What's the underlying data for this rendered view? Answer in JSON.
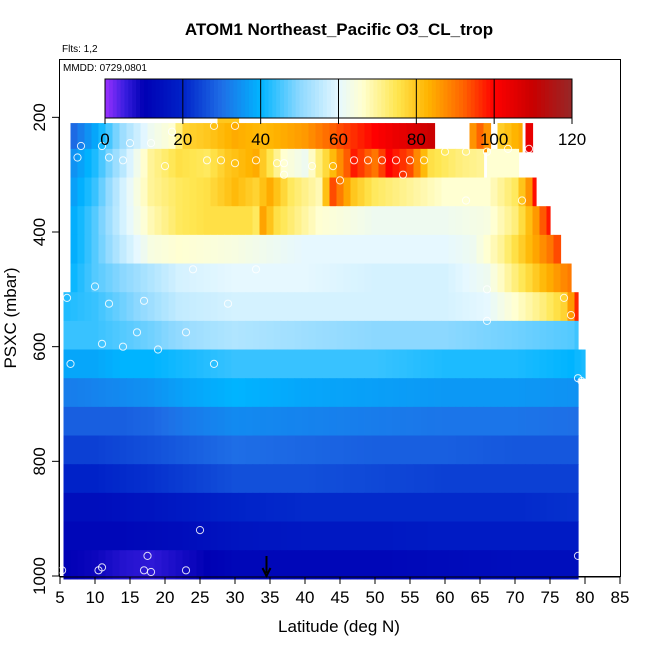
{
  "chart_data": {
    "type": "heatmap",
    "title": "ATOM1 Northeast_Pacific O3_CL_trop",
    "flights_label": "Flts: 1,2",
    "date_label": "MMDD: 0729,0801",
    "xlabel": "Latitude (deg N)",
    "ylabel": "PSXC (mbar)",
    "xlim": [
      5,
      85
    ],
    "ylim": [
      1000,
      100
    ],
    "x_ticks": [
      5,
      10,
      15,
      20,
      25,
      30,
      35,
      40,
      45,
      50,
      55,
      60,
      65,
      70,
      75,
      80,
      85
    ],
    "y_ticks": [
      200,
      400,
      600,
      800,
      1000
    ],
    "colorbar": {
      "min": 0,
      "max": 120,
      "ticks": [
        0,
        20,
        40,
        60,
        80,
        100,
        120
      ],
      "stops": [
        {
          "v": 0,
          "c": "#9b30ff"
        },
        {
          "v": 5,
          "c": "#3a1ee0"
        },
        {
          "v": 10,
          "c": "#0000b4"
        },
        {
          "v": 20,
          "c": "#0022c8"
        },
        {
          "v": 30,
          "c": "#1e6ee6"
        },
        {
          "v": 40,
          "c": "#00b4ff"
        },
        {
          "v": 50,
          "c": "#8cd8ff"
        },
        {
          "v": 60,
          "c": "#e6f8ff"
        },
        {
          "v": 66,
          "c": "#ffffd2"
        },
        {
          "v": 75,
          "c": "#ffe650"
        },
        {
          "v": 83,
          "c": "#ffb400"
        },
        {
          "v": 92,
          "c": "#ff6400"
        },
        {
          "v": 100,
          "c": "#ff0000"
        },
        {
          "v": 110,
          "c": "#c80000"
        },
        {
          "v": 120,
          "c": "#962828"
        }
      ]
    },
    "arrow_latitude": 34.5,
    "rows": [
      {
        "p": 210,
        "x0": 27.5,
        "x1": 30.5,
        "default": 80,
        "knots": [
          [
            27.5,
            80
          ]
        ]
      },
      {
        "p": 235,
        "x0": 6.5,
        "x1": 58.5,
        "default": 62,
        "knots": [
          [
            6.5,
            28
          ],
          [
            10,
            38
          ],
          [
            14,
            52
          ],
          [
            18,
            62
          ],
          [
            21,
            66
          ],
          [
            23,
            78
          ],
          [
            26,
            80
          ],
          [
            30,
            84
          ],
          [
            34,
            82
          ],
          [
            40,
            86
          ],
          [
            45,
            94
          ],
          [
            50,
            100
          ],
          [
            55,
            106
          ],
          [
            58.5,
            110
          ]
        ]
      },
      {
        "p": 235,
        "x0": 63.5,
        "x1": 66.5,
        "default": 88,
        "knots": [
          [
            63.5,
            84
          ],
          [
            65,
            92
          ],
          [
            66.5,
            84
          ]
        ]
      },
      {
        "p": 235,
        "x0": 67.5,
        "x1": 71,
        "default": 82,
        "knots": [
          [
            67.5,
            78
          ],
          [
            71,
            85
          ]
        ]
      },
      {
        "p": 235,
        "x0": 71.5,
        "x1": 72.5,
        "default": 104,
        "knots": [
          [
            71.5,
            104
          ]
        ]
      },
      {
        "p": 280,
        "x0": 6.5,
        "x1": 65.5,
        "default": 70,
        "knots": [
          [
            6.5,
            34
          ],
          [
            10,
            42
          ],
          [
            14,
            55
          ],
          [
            18,
            70
          ],
          [
            22,
            76
          ],
          [
            26,
            74
          ],
          [
            29,
            80
          ],
          [
            33,
            84
          ],
          [
            37,
            66
          ],
          [
            40,
            62
          ],
          [
            44,
            82
          ],
          [
            47,
            98
          ],
          [
            50,
            90
          ],
          [
            52,
            100
          ],
          [
            55,
            94
          ],
          [
            58,
            76
          ],
          [
            62,
            72
          ],
          [
            65.5,
            70
          ]
        ]
      },
      {
        "p": 280,
        "x0": 66,
        "x1": 70.5,
        "default": 66,
        "knots": [
          [
            66,
            66
          ]
        ]
      },
      {
        "p": 330,
        "x0": 6.5,
        "x1": 73,
        "default": 66,
        "knots": [
          [
            6.5,
            36
          ],
          [
            10,
            44
          ],
          [
            14,
            58
          ],
          [
            18,
            70
          ],
          [
            22,
            74
          ],
          [
            26,
            76
          ],
          [
            30,
            82
          ],
          [
            33,
            78
          ],
          [
            35,
            84
          ],
          [
            38,
            74
          ],
          [
            42,
            68
          ],
          [
            44,
            94
          ],
          [
            47,
            80
          ],
          [
            50,
            74
          ],
          [
            55,
            70
          ],
          [
            60,
            66
          ],
          [
            66,
            66
          ],
          [
            70,
            74
          ],
          [
            72.5,
            90
          ],
          [
            73,
            108
          ]
        ]
      },
      {
        "p": 380,
        "x0": 6.5,
        "x1": 75,
        "default": 64,
        "knots": [
          [
            6.5,
            38
          ],
          [
            10,
            46
          ],
          [
            14,
            58
          ],
          [
            18,
            68
          ],
          [
            22,
            74
          ],
          [
            26,
            76
          ],
          [
            32,
            76
          ],
          [
            33,
            74
          ],
          [
            33.3,
            88
          ],
          [
            36,
            76
          ],
          [
            42,
            66
          ],
          [
            50,
            62
          ],
          [
            60,
            62
          ],
          [
            66,
            64
          ],
          [
            70,
            72
          ],
          [
            73,
            86
          ],
          [
            75,
            100
          ]
        ]
      },
      {
        "p": 430,
        "x0": 6.5,
        "x1": 76.5,
        "default": 62,
        "knots": [
          [
            6.5,
            38
          ],
          [
            10,
            46
          ],
          [
            14,
            56
          ],
          [
            18,
            64
          ],
          [
            22,
            66
          ],
          [
            30,
            64
          ],
          [
            40,
            60
          ],
          [
            50,
            60
          ],
          [
            60,
            60
          ],
          [
            64,
            62
          ],
          [
            68,
            70
          ],
          [
            72,
            82
          ],
          [
            75,
            90
          ],
          [
            76.5,
            96
          ]
        ]
      },
      {
        "p": 480,
        "x0": 6.5,
        "x1": 78,
        "default": 58,
        "knots": [
          [
            6.5,
            40
          ],
          [
            10,
            46
          ],
          [
            14,
            50
          ],
          [
            18,
            54
          ],
          [
            22,
            58
          ],
          [
            30,
            60
          ],
          [
            40,
            60
          ],
          [
            50,
            58
          ],
          [
            60,
            58
          ],
          [
            66,
            62
          ],
          [
            70,
            72
          ],
          [
            74,
            82
          ],
          [
            77,
            88
          ],
          [
            78,
            90
          ]
        ]
      },
      {
        "p": 530,
        "x0": 5.5,
        "x1": 79,
        "default": 58,
        "knots": [
          [
            5.5,
            42
          ],
          [
            10,
            44
          ],
          [
            14,
            48
          ],
          [
            18,
            52
          ],
          [
            22,
            56
          ],
          [
            30,
            58
          ],
          [
            40,
            58
          ],
          [
            50,
            58
          ],
          [
            60,
            58
          ],
          [
            66,
            60
          ],
          [
            70,
            66
          ],
          [
            74,
            72
          ],
          [
            77,
            78
          ],
          [
            78.5,
            90
          ],
          [
            79,
            104
          ]
        ]
      },
      {
        "p": 580,
        "x0": 5.5,
        "x1": 79,
        "default": 50,
        "knots": [
          [
            5.5,
            44
          ],
          [
            10,
            44
          ],
          [
            14,
            46
          ],
          [
            18,
            48
          ],
          [
            24,
            52
          ],
          [
            30,
            54
          ],
          [
            40,
            52
          ],
          [
            50,
            50
          ],
          [
            60,
            50
          ],
          [
            70,
            48
          ],
          [
            78,
            46
          ],
          [
            79,
            44
          ]
        ]
      },
      {
        "p": 630,
        "x0": 5.5,
        "x1": 80,
        "default": 44,
        "knots": [
          [
            5.5,
            38
          ],
          [
            10,
            38
          ],
          [
            14,
            40
          ],
          [
            18,
            40
          ],
          [
            24,
            42
          ],
          [
            30,
            44
          ],
          [
            40,
            44
          ],
          [
            50,
            44
          ],
          [
            60,
            42
          ],
          [
            70,
            42
          ],
          [
            78,
            40
          ],
          [
            80,
            42
          ]
        ]
      },
      {
        "p": 680,
        "x0": 5.5,
        "x1": 79,
        "default": 38,
        "knots": [
          [
            5.5,
            32
          ],
          [
            10,
            33
          ],
          [
            14,
            34
          ],
          [
            18,
            35
          ],
          [
            24,
            38
          ],
          [
            30,
            40
          ],
          [
            40,
            38
          ],
          [
            50,
            37
          ],
          [
            60,
            36
          ],
          [
            70,
            36
          ],
          [
            79,
            35
          ]
        ]
      },
      {
        "p": 730,
        "x0": 5.5,
        "x1": 79,
        "default": 32,
        "knots": [
          [
            5.5,
            28
          ],
          [
            10,
            28
          ],
          [
            14,
            28
          ],
          [
            18,
            29
          ],
          [
            24,
            32
          ],
          [
            30,
            34
          ],
          [
            40,
            33
          ],
          [
            50,
            32
          ],
          [
            60,
            31
          ],
          [
            70,
            31
          ],
          [
            79,
            30
          ]
        ]
      },
      {
        "p": 780,
        "x0": 5.5,
        "x1": 79,
        "default": 28,
        "knots": [
          [
            5.5,
            24
          ],
          [
            10,
            24
          ],
          [
            14,
            25
          ],
          [
            18,
            26
          ],
          [
            24,
            28
          ],
          [
            30,
            30
          ],
          [
            40,
            29
          ],
          [
            50,
            28
          ],
          [
            60,
            28
          ],
          [
            70,
            27
          ],
          [
            79,
            27
          ]
        ]
      },
      {
        "p": 830,
        "x0": 5.5,
        "x1": 79,
        "default": 24,
        "knots": [
          [
            5.5,
            20
          ],
          [
            10,
            20
          ],
          [
            14,
            21
          ],
          [
            18,
            22
          ],
          [
            24,
            24
          ],
          [
            30,
            26
          ],
          [
            40,
            26
          ],
          [
            50,
            25
          ],
          [
            60,
            24
          ],
          [
            70,
            24
          ],
          [
            79,
            24
          ]
        ]
      },
      {
        "p": 880,
        "x0": 5.5,
        "x1": 79,
        "default": 20,
        "knots": [
          [
            5.5,
            14
          ],
          [
            10,
            14
          ],
          [
            14,
            15
          ],
          [
            18,
            16
          ],
          [
            24,
            18
          ],
          [
            30,
            20
          ],
          [
            40,
            21
          ],
          [
            50,
            21
          ],
          [
            60,
            21
          ],
          [
            70,
            21
          ],
          [
            79,
            22
          ]
        ]
      },
      {
        "p": 930,
        "x0": 5.5,
        "x1": 79,
        "default": 16,
        "knots": [
          [
            5.5,
            12
          ],
          [
            10,
            12
          ],
          [
            14,
            12
          ],
          [
            18,
            13
          ],
          [
            24,
            14
          ],
          [
            30,
            16
          ],
          [
            40,
            17
          ],
          [
            50,
            17
          ],
          [
            60,
            18
          ],
          [
            70,
            18
          ],
          [
            79,
            18
          ]
        ]
      },
      {
        "p": 980,
        "x0": 5.5,
        "x1": 79,
        "default": 12,
        "knots": [
          [
            5.5,
            10
          ],
          [
            10,
            9
          ],
          [
            14,
            7
          ],
          [
            18,
            6
          ],
          [
            22,
            8
          ],
          [
            26,
            10
          ],
          [
            30,
            12
          ],
          [
            40,
            12
          ],
          [
            50,
            12
          ],
          [
            60,
            13
          ],
          [
            70,
            14
          ],
          [
            79,
            14
          ]
        ]
      }
    ],
    "points": [
      [
        8,
        250
      ],
      [
        11,
        250
      ],
      [
        15,
        245
      ],
      [
        18,
        245
      ],
      [
        21,
        225
      ],
      [
        27,
        215
      ],
      [
        30,
        215
      ],
      [
        7.5,
        270
      ],
      [
        12,
        270
      ],
      [
        14,
        275
      ],
      [
        20,
        285
      ],
      [
        26,
        275
      ],
      [
        28,
        275
      ],
      [
        30,
        280
      ],
      [
        33,
        275
      ],
      [
        36,
        280
      ],
      [
        37,
        280
      ],
      [
        41,
        285
      ],
      [
        44,
        285
      ],
      [
        47,
        275
      ],
      [
        49,
        275
      ],
      [
        51,
        275
      ],
      [
        53,
        275
      ],
      [
        55,
        275
      ],
      [
        57,
        275
      ],
      [
        60,
        260
      ],
      [
        63,
        260
      ],
      [
        66,
        260
      ],
      [
        69,
        255
      ],
      [
        72,
        255
      ],
      [
        37,
        300
      ],
      [
        45,
        310
      ],
      [
        54,
        300
      ],
      [
        63,
        345
      ],
      [
        71,
        345
      ],
      [
        24,
        465
      ],
      [
        33,
        465
      ],
      [
        10,
        495
      ],
      [
        66,
        500
      ],
      [
        12,
        525
      ],
      [
        17,
        520
      ],
      [
        6,
        515
      ],
      [
        29,
        525
      ],
      [
        77,
        515
      ],
      [
        23,
        575
      ],
      [
        16,
        575
      ],
      [
        11,
        595
      ],
      [
        14,
        600
      ],
      [
        19,
        605
      ],
      [
        66,
        555
      ],
      [
        78,
        545
      ],
      [
        6.5,
        630
      ],
      [
        27,
        630
      ],
      [
        79,
        655
      ],
      [
        79.5,
        660
      ],
      [
        25,
        920
      ],
      [
        79,
        965
      ],
      [
        17.5,
        965
      ],
      [
        11,
        985
      ],
      [
        10.5,
        990
      ],
      [
        17,
        990
      ],
      [
        18,
        993
      ],
      [
        23,
        990
      ],
      [
        5.3,
        990
      ]
    ]
  }
}
